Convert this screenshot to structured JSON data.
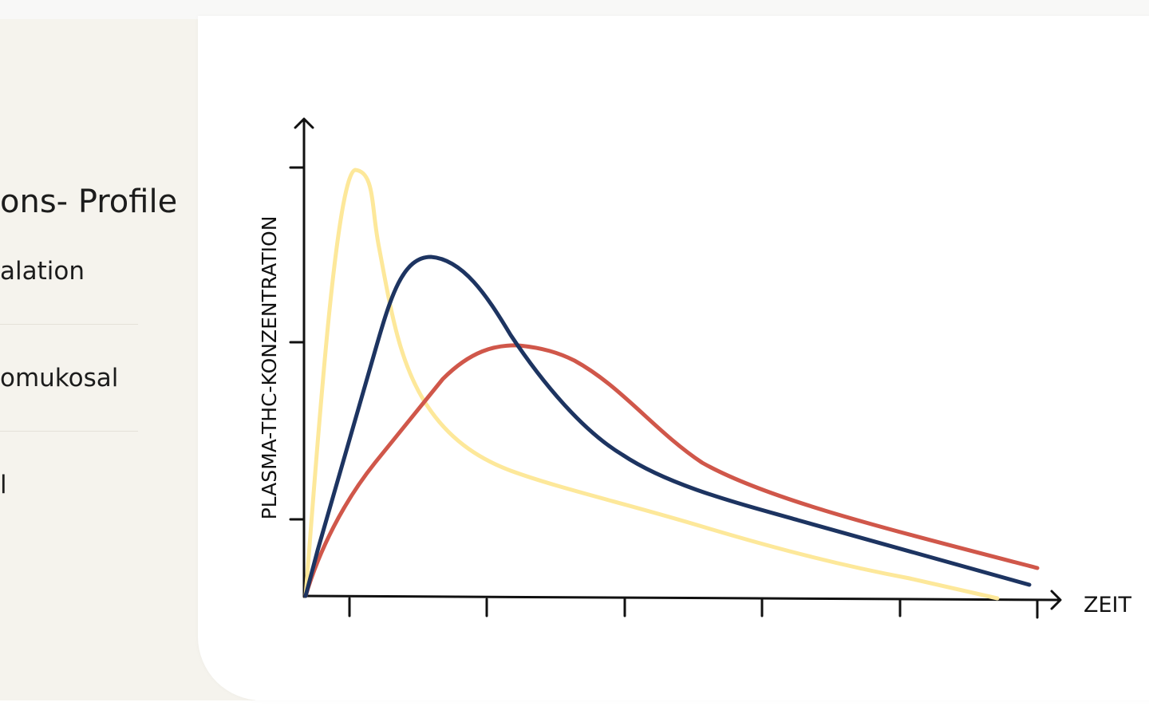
{
  "sidebar": {
    "title": "ons- Profile",
    "items": [
      "alation",
      "omukosal",
      "l"
    ]
  },
  "chart": {
    "y_axis_label": "PLASMA-THC-KONZENTRATION",
    "x_axis_label": "ZEIT"
  }
}
